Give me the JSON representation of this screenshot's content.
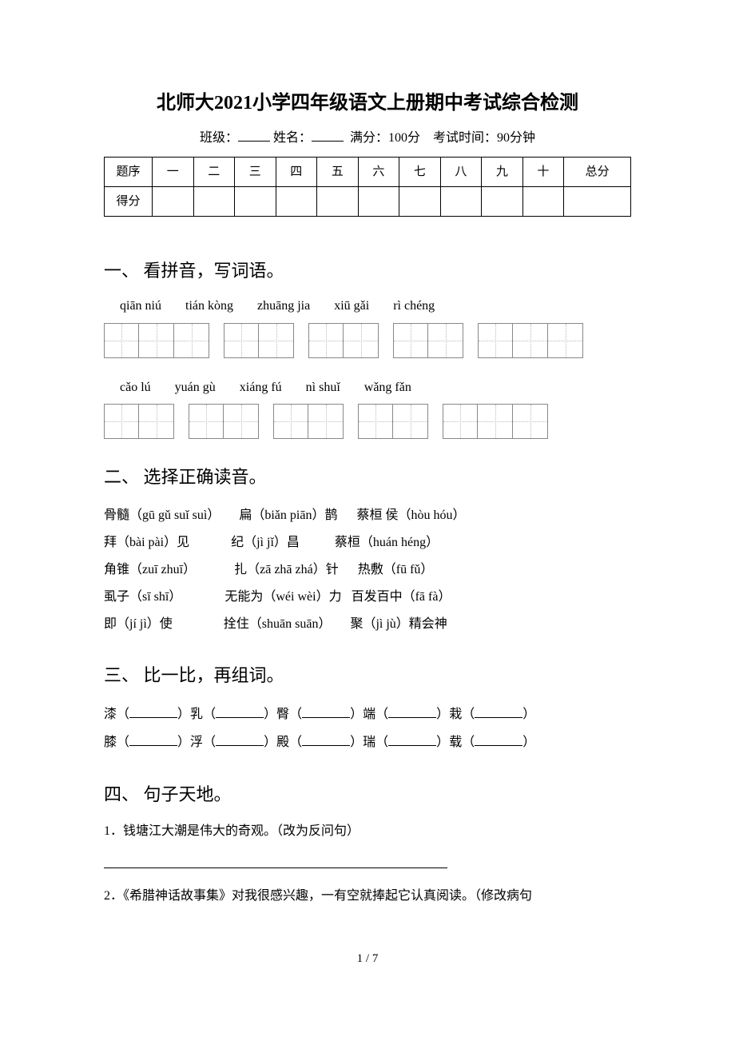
{
  "title": "北师大2021小学四年级语文上册期中考试综合检测",
  "subtitle": {
    "class_label": "班级：",
    "name_label": "姓名：",
    "full_score": "满分：100分",
    "exam_time": "考试时间：90分钟"
  },
  "score_table": {
    "row1": [
      "题序",
      "一",
      "二",
      "三",
      "四",
      "五",
      "六",
      "七",
      "八",
      "九",
      "十",
      "总分"
    ],
    "row2_label": "得分"
  },
  "sections": {
    "s1": {
      "heading": "一、 看拼音，写词语。",
      "pinyin_row1": [
        "qiān niú",
        "tián kòng",
        "zhuāng jia",
        "xiū gǎi",
        "rì chéng"
      ],
      "pinyin_row2": [
        "cǎo lú",
        "yuán gù",
        "xiáng fú",
        "nì shuǐ",
        "wǎng fǎn"
      ]
    },
    "s2": {
      "heading": "二、 选择正确读音。",
      "lines": [
        [
          {
            "text": "骨髓（gū gǔ  suǐ suì）"
          },
          {
            "text": "扁（biǎn piān）鹊"
          },
          {
            "text": "蔡桓 侯（hòu  hóu）"
          }
        ],
        [
          {
            "text": "拜（bài pài）见"
          },
          {
            "text": "纪（jì jǐ）昌"
          },
          {
            "text": "蔡桓（huán  héng）"
          }
        ],
        [
          {
            "text": "角锥（zuī zhuī）"
          },
          {
            "text": "扎（zā zhā zhá）针"
          },
          {
            "text": "热敷（fū  fǔ）"
          }
        ],
        [
          {
            "text": "虱子（sī  shī）"
          },
          {
            "text": "无能为（wéi wèi）力"
          },
          {
            "text": "百发百中（fā fà）"
          }
        ],
        [
          {
            "text": "即（jí jì）使"
          },
          {
            "text": "拴住（shuān suān）"
          },
          {
            "text": "聚（jì jù）精会神"
          }
        ]
      ]
    },
    "s3": {
      "heading": "三、 比一比，再组词。",
      "row1": [
        "漆",
        "乳",
        "臀",
        "端",
        "栽"
      ],
      "row2": [
        "膝",
        "浮",
        "殿",
        "瑞",
        "载"
      ]
    },
    "s4": {
      "heading": "四、 句子天地。",
      "q1": "1．钱塘江大潮是伟大的奇观。（改为反问句）",
      "q2": "2．《希腊神话故事集》对我很感兴趣，一有空就捧起它认真阅读。（修改病句"
    }
  },
  "page_number": "1 / 7"
}
